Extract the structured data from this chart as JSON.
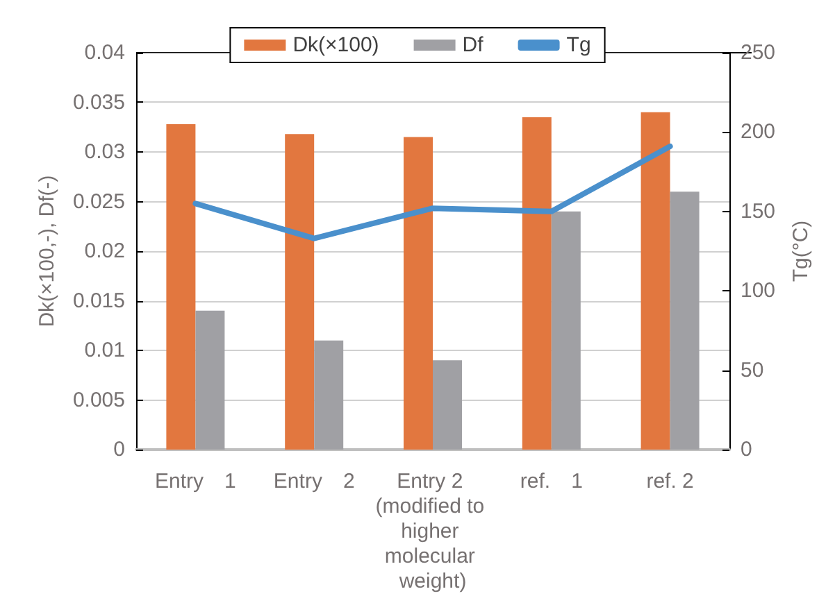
{
  "chart_data": {
    "type": "bar",
    "categories": [
      "Entry　1",
      "Entry　2",
      "Entry 2 (modified to higher molecular weight)",
      "ref.　1",
      "ref. 2"
    ],
    "series": [
      {
        "name": "Dk(×100)",
        "color": "#e2773f",
        "values": [
          0.0328,
          0.0318,
          0.0315,
          0.0335,
          0.034
        ]
      },
      {
        "name": "Df",
        "color": "#a0a0a4",
        "values": [
          0.014,
          0.011,
          0.009,
          0.024,
          0.026
        ]
      },
      {
        "name": "Tg",
        "type": "line",
        "axis": "y2",
        "color": "#4a90cc",
        "values": [
          155,
          133,
          152,
          150,
          191
        ]
      }
    ],
    "ylabel": "Dk(×100,-), Df(-)",
    "y2label": "Tg(°C)",
    "ylim": [
      0,
      0.04
    ],
    "yticks": [
      0,
      0.005,
      0.01,
      0.015,
      0.02,
      0.025,
      0.03,
      0.035,
      0.04
    ],
    "y2lim": [
      0,
      250
    ],
    "y2ticks": [
      0,
      50,
      100,
      150,
      200,
      250
    ],
    "grid": "y",
    "legend": "top",
    "marker": "none",
    "line_style": "solid"
  }
}
